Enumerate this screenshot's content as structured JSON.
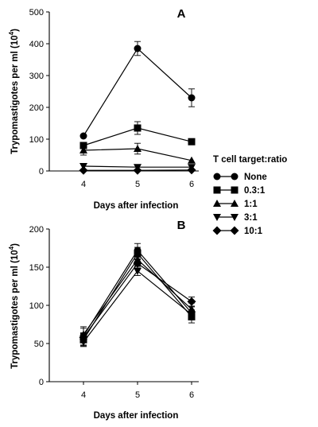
{
  "chart_data": [
    {
      "type": "line",
      "panel_label": "A",
      "xlabel": "Days after infection",
      "ylabel": "Trypomastigotes per ml  (10",
      "ylabel_exp": "4",
      "ylabel_close": ")",
      "x": [
        4,
        5,
        6
      ],
      "xticks": [
        "4",
        "5",
        "6"
      ],
      "ylim": [
        0,
        500
      ],
      "yticks": [
        "0",
        "100",
        "200",
        "300",
        "400",
        "500"
      ],
      "series": [
        {
          "name": "None",
          "marker": "circle",
          "values": [
            110,
            385,
            230
          ],
          "errors": [
            0,
            22,
            28
          ]
        },
        {
          "name": "0.3:1",
          "marker": "square",
          "values": [
            80,
            135,
            92
          ],
          "errors": [
            10,
            20,
            0
          ]
        },
        {
          "name": "1:1",
          "marker": "triangle-up",
          "values": [
            65,
            70,
            33
          ],
          "errors": [
            15,
            17,
            0
          ]
        },
        {
          "name": "3:1",
          "marker": "triangle-down",
          "values": [
            15,
            12,
            12
          ],
          "errors": [
            0,
            0,
            0
          ]
        },
        {
          "name": "10:1",
          "marker": "diamond",
          "values": [
            2,
            2,
            3
          ],
          "errors": [
            0,
            0,
            0
          ]
        }
      ]
    },
    {
      "type": "line",
      "panel_label": "B",
      "xlabel": "Days after infection",
      "ylabel": "Trypomastigotes per ml  (10",
      "ylabel_exp": "4",
      "ylabel_close": ")",
      "x": [
        4,
        5,
        6
      ],
      "xticks": [
        "4",
        "5",
        "6"
      ],
      "ylim": [
        0,
        200
      ],
      "yticks": [
        "0",
        "50",
        "100",
        "150",
        "200"
      ],
      "series": [
        {
          "name": "None",
          "marker": "circle",
          "values": [
            60,
            172,
            90
          ],
          "errors": [
            12,
            9,
            8
          ]
        },
        {
          "name": "0.3:1",
          "marker": "square",
          "values": [
            55,
            168,
            85
          ],
          "errors": [
            8,
            8,
            8
          ]
        },
        {
          "name": "1:1",
          "marker": "triangle-up",
          "values": [
            62,
            160,
            95
          ],
          "errors": [
            8,
            8,
            8
          ]
        },
        {
          "name": "3:1",
          "marker": "triangle-down",
          "values": [
            52,
            145,
            88
          ],
          "errors": [
            6,
            6,
            6
          ]
        },
        {
          "name": "10:1",
          "marker": "diamond",
          "values": [
            58,
            155,
            105
          ],
          "errors": [
            6,
            6,
            6
          ]
        }
      ]
    }
  ],
  "legend": {
    "title": "T cell target:ratio",
    "entries": [
      "None",
      "0.3:1",
      "1:1",
      "3:1",
      "10:1"
    ]
  }
}
